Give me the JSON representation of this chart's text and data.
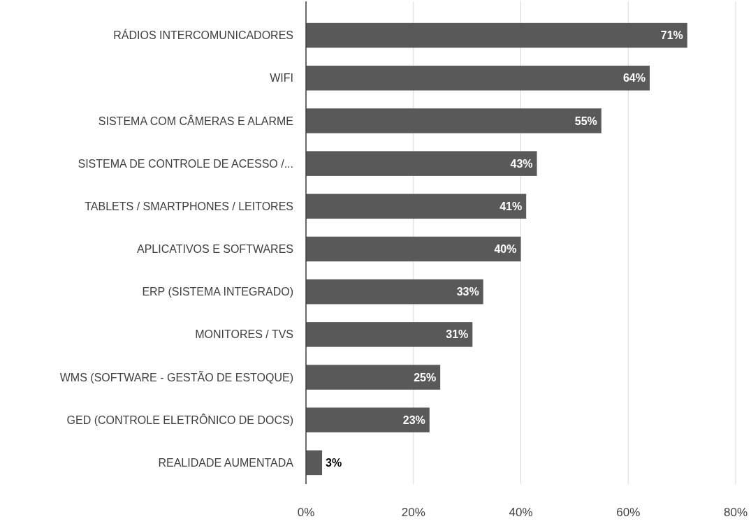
{
  "chart_data": {
    "type": "bar",
    "orientation": "horizontal",
    "categories": [
      "RÁDIOS INTERCOMUNICADORES",
      "WIFI",
      "SISTEMA COM CÂMERAS E ALARME",
      "SISTEMA DE CONTROLE DE ACESSO /...",
      "TABLETS / SMARTPHONES / LEITORES",
      "APLICATIVOS E SOFTWARES",
      "ERP (SISTEMA INTEGRADO)",
      "MONITORES / TVS",
      "WMS (SOFTWARE - GESTÃO DE ESTOQUE)",
      "GED (CONTROLE ELETRÔNICO DE DOCS)",
      "REALIDADE AUMENTADA"
    ],
    "values": [
      71,
      64,
      55,
      43,
      41,
      40,
      33,
      31,
      25,
      23,
      3
    ],
    "value_labels": [
      "71%",
      "64%",
      "55%",
      "43%",
      "41%",
      "40%",
      "33%",
      "31%",
      "25%",
      "23%",
      "3%"
    ],
    "color": "#595959",
    "xlim": [
      0,
      80
    ],
    "xticks": [
      {
        "value": 0,
        "label": "0%"
      },
      {
        "value": 20,
        "label": "20%"
      },
      {
        "value": 40,
        "label": "40%"
      },
      {
        "value": 60,
        "label": "60%"
      },
      {
        "value": 80,
        "label": "80%"
      }
    ],
    "grid": "x"
  }
}
